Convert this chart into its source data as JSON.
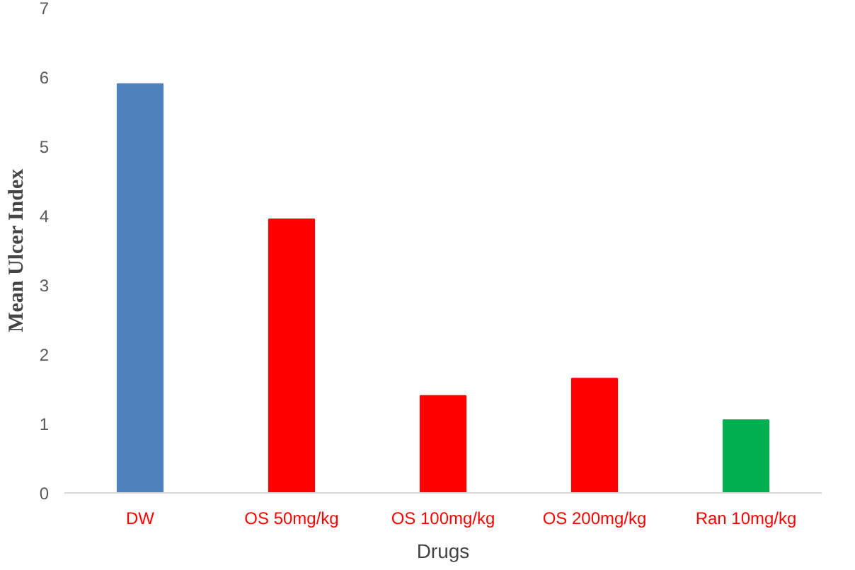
{
  "chart_data": {
    "type": "bar",
    "xlabel": "Drugs",
    "ylabel": "Mean Ulcer Index",
    "categories": [
      "DW",
      "OS 50mg/kg",
      "OS 100mg/kg",
      "OS 200mg/kg",
      "Ran 10mg/kg"
    ],
    "values": [
      5.9,
      3.95,
      1.4,
      1.65,
      1.05
    ],
    "colors": [
      "#4f81bd",
      "#ff0000",
      "#ff0000",
      "#ff0000",
      "#00b050"
    ],
    "ylim": [
      0,
      7
    ],
    "yticks": [
      0,
      1,
      2,
      3,
      4,
      5,
      6,
      7
    ],
    "grid": false
  }
}
